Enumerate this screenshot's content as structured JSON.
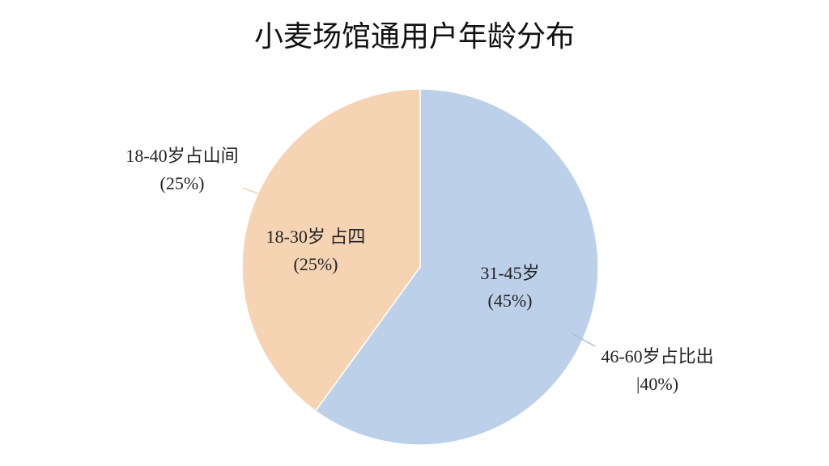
{
  "chart_data": {
    "type": "pie",
    "title": "小麦场馆通用户年龄分布",
    "categories": [
      null,
      null
    ],
    "values": [
      60,
      40
    ],
    "colors": [
      "#bcd0ea",
      "#f5d3b3"
    ],
    "annotations": [
      [
        "18-40岁占山间",
        "(25%)"
      ],
      [
        "18-30岁 占四",
        "(25%)"
      ],
      [
        "31-45岁",
        "(45%)"
      ],
      [
        "46-60岁占比出",
        "|40%)"
      ]
    ]
  }
}
